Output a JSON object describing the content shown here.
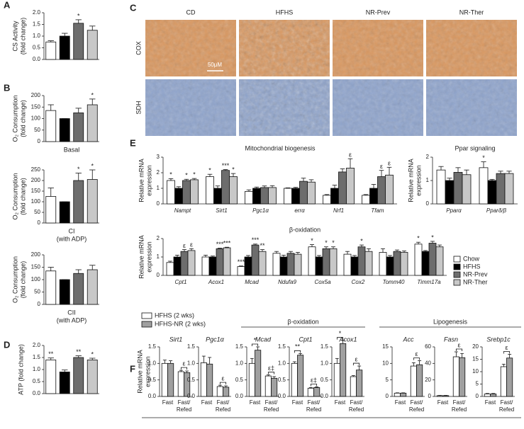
{
  "chart_data": [
    {
      "type": "bar",
      "panel": "A",
      "ylabel": [
        "CS Activity",
        "(fold change)"
      ],
      "values": [
        0.75,
        1.0,
        1.55,
        1.25
      ],
      "errors": [
        0.05,
        0.12,
        0.15,
        0.18
      ],
      "marks": [
        null,
        null,
        "*",
        null
      ],
      "colors": [
        "#ffffff",
        "#000000",
        "#6d6d6d",
        "#c8c8c8"
      ],
      "ylim": [
        0,
        2
      ],
      "yticks": [
        {
          "value": 0,
          "label": "0.0"
        },
        0.5,
        {
          "value": 1,
          "label": "1.0"
        },
        1.5,
        {
          "value": 2,
          "label": "2.0"
        }
      ]
    },
    {
      "type": "bar",
      "panel": "B",
      "ylabel": [
        "O₂ Consumption",
        "(fold change)"
      ],
      "xlabel": [
        "Basal"
      ],
      "values": [
        135,
        100,
        125,
        160
      ],
      "errors": [
        25,
        0,
        20,
        25
      ],
      "marks": [
        null,
        null,
        null,
        "*"
      ],
      "colors": [
        "#ffffff",
        "#000000",
        "#6d6d6d",
        "#c8c8c8"
      ],
      "ylim": [
        0,
        200
      ],
      "yticks": [
        0,
        50,
        100,
        150,
        200
      ]
    },
    {
      "type": "bar",
      "ylabel": [
        "O₂ Consumption",
        "(fold change)"
      ],
      "xlabel": [
        "CI",
        "(with ADP)"
      ],
      "values": [
        125,
        100,
        200,
        205
      ],
      "errors": [
        40,
        0,
        35,
        45
      ],
      "marks": [
        null,
        null,
        "*",
        "*"
      ],
      "colors": [
        "#ffffff",
        "#000000",
        "#6d6d6d",
        "#c8c8c8"
      ],
      "ylim": [
        0,
        250
      ],
      "yticks": [
        0,
        50,
        100,
        150,
        200,
        250
      ]
    },
    {
      "type": "bar",
      "ylabel": [
        "O₂ Consumption",
        "(fold change)"
      ],
      "xlabel": [
        "CII",
        "(with ADP)"
      ],
      "values": [
        135,
        100,
        125,
        140
      ],
      "errors": [
        15,
        0,
        15,
        18
      ],
      "marks": [
        null,
        null,
        null,
        null
      ],
      "colors": [
        "#ffffff",
        "#000000",
        "#6d6d6d",
        "#c8c8c8"
      ],
      "ylim": [
        0,
        200
      ],
      "yticks": [
        0,
        50,
        100,
        150,
        200
      ]
    },
    {
      "type": "bar",
      "panel": "D",
      "ylabel": [
        "ATP (fold change)"
      ],
      "values": [
        1.4,
        0.9,
        1.5,
        1.4
      ],
      "errors": [
        0.08,
        0.08,
        0.07,
        0.07
      ],
      "marks": [
        "**",
        null,
        "**",
        "*"
      ],
      "colors": [
        "#ffffff",
        "#000000",
        "#6d6d6d",
        "#c8c8c8"
      ],
      "ylim": [
        0,
        2
      ],
      "yticks": [
        {
          "value": 0,
          "label": "0.0"
        },
        0.5,
        {
          "value": 1,
          "label": "1.0"
        },
        1.5,
        {
          "value": 2,
          "label": "2.0"
        }
      ]
    },
    {
      "type": "grouped-bar",
      "panel": "E",
      "ylabel": [
        "Relative mRNA",
        "expression"
      ],
      "series": [
        {
          "name": "Chow",
          "color": "#ffffff"
        },
        {
          "name": "HFHS",
          "color": "#000000"
        },
        {
          "name": "NR-Prev",
          "color": "#6d6d6d"
        },
        {
          "name": "NR-Ther",
          "color": "#c8c8c8"
        }
      ],
      "subcharts": [
        {
          "title": "Mitochondrial biogenesis",
          "categories": [
            "Nampt",
            "Sirt1",
            "Pgc1α",
            "errα",
            "Nrf1",
            "Tfam"
          ],
          "values": [
            [
              1.5,
              1.75,
              0.8,
              1.0,
              0.55,
              0.55
            ],
            [
              1.0,
              1.0,
              1.0,
              1.0,
              1.0,
              1.0
            ],
            [
              1.5,
              2.15,
              1.05,
              1.45,
              2.05,
              1.75
            ],
            [
              1.55,
              1.75,
              1.05,
              1.4,
              2.3,
              1.85
            ]
          ],
          "errors": [
            [
              0.12,
              0.15,
              0.1,
              0.03,
              0.05,
              0.05
            ],
            [
              0.1,
              0.15,
              0.08,
              0.06,
              0.2,
              0.25
            ],
            [
              0.08,
              0.05,
              0.1,
              0.2,
              0.2,
              0.4
            ],
            [
              0.08,
              0.2,
              0.12,
              0.15,
              0.6,
              0.5
            ]
          ],
          "marks": [
            [
              "*",
              "*",
              null,
              null,
              null,
              null
            ],
            [
              null,
              null,
              null,
              null,
              null,
              null
            ],
            [
              "*",
              "***",
              null,
              null,
              null,
              "ε"
            ],
            [
              "*",
              "*",
              null,
              null,
              "ε",
              "ε"
            ]
          ],
          "ylim": [
            0,
            3
          ],
          "yticks": [
            0,
            1,
            2,
            3
          ]
        },
        {
          "title": "Ppar signaling",
          "categories": [
            "Pparα",
            "Pparδ/β"
          ],
          "values": [
            [
              1.45,
              1.55
            ],
            [
              1.0,
              1.0
            ],
            [
              1.35,
              1.3
            ],
            [
              1.25,
              1.3
            ]
          ],
          "errors": [
            [
              0.15,
              0.25
            ],
            [
              0.1,
              0.05
            ],
            [
              0.2,
              0.1
            ],
            [
              0.2,
              0.1
            ]
          ],
          "marks": [
            [
              null,
              "*"
            ],
            [
              null,
              null
            ],
            [
              null,
              null
            ],
            [
              null,
              null
            ]
          ],
          "ylim": [
            0,
            2
          ],
          "yticks": [
            0,
            1,
            2
          ]
        },
        {
          "title": "β-oxidation",
          "categories": [
            "Cpt1",
            "Acox1",
            "Mcad",
            "Ndufa9",
            "Cox5a",
            "Cox2",
            "Tomm40",
            "Timm17a"
          ],
          "values": [
            [
              0.7,
              1.0,
              0.48,
              1.2,
              1.55,
              1.15,
              1.25,
              1.7
            ],
            [
              1.0,
              1.0,
              1.0,
              1.0,
              1.0,
              1.0,
              1.0,
              1.3
            ],
            [
              1.3,
              1.45,
              1.65,
              1.2,
              1.45,
              1.55,
              1.3,
              1.75
            ],
            [
              1.35,
              1.5,
              1.3,
              1.15,
              1.45,
              1.3,
              1.25,
              1.55
            ]
          ],
          "errors": [
            [
              0.07,
              0.1,
              0.03,
              0.1,
              0.12,
              0.15,
              0.2,
              0.1
            ],
            [
              0.1,
              0.05,
              0.08,
              0.1,
              0.08,
              0.08,
              0.08,
              0.05
            ],
            [
              0.1,
              0.03,
              0.05,
              0.1,
              0.1,
              0.1,
              0.08,
              0.1
            ],
            [
              0.1,
              0.03,
              0.1,
              0.1,
              0.1,
              0.15,
              0.08,
              0.1
            ]
          ],
          "marks": [
            [
              null,
              null,
              "***",
              null,
              "*",
              null,
              null,
              "*"
            ],
            [
              null,
              null,
              null,
              null,
              null,
              null,
              null,
              null
            ],
            [
              "ε",
              "***",
              "***",
              null,
              "*",
              "*",
              null,
              "*"
            ],
            [
              "ε",
              "***",
              "**",
              null,
              "*",
              null,
              null,
              null
            ]
          ],
          "ylim": [
            0,
            2
          ],
          "yticks": [
            0,
            1,
            2
          ]
        }
      ]
    },
    {
      "type": "paired-bar",
      "panel": "F",
      "ylabel": [
        "Relative mRNA",
        "expression"
      ],
      "series": [
        {
          "name": "HFHS (2 wks)",
          "color": "#ffffff"
        },
        {
          "name": "HFHS-NR (2 wks)",
          "color": "#a0a0a0"
        }
      ],
      "categories": [
        [
          "Fast"
        ],
        [
          "Fast/",
          "Refed"
        ]
      ],
      "groups": [
        "β-oxidation",
        "Lipogenesis"
      ],
      "genes": [
        {
          "name": "Sirt1",
          "values": [
            [
              1.0,
              0.75
            ],
            [
              1.0,
              0.72
            ]
          ],
          "errors": [
            [
              0.1,
              0.04
            ],
            [
              0.08,
              0.05
            ]
          ],
          "pair_marks": [
            null,
            "ε"
          ],
          "ylim": [
            0,
            1.5
          ],
          "yticks": [
            {
              "value": 0,
              "label": "0.0"
            },
            0.5,
            {
              "value": 1,
              "label": "1.0"
            },
            1.5
          ]
        },
        {
          "name": "Pgc1α",
          "values": [
            [
              1.02,
              0.3
            ],
            [
              0.98,
              0.28
            ]
          ],
          "errors": [
            [
              0.2,
              0.04
            ],
            [
              0.2,
              0.04
            ]
          ],
          "pair_marks": [
            null,
            "ε"
          ],
          "ylim": [
            0,
            1.5
          ],
          "yticks": [
            {
              "value": 0,
              "label": "0.0"
            },
            0.5,
            {
              "value": 1,
              "label": "1.0"
            },
            1.5
          ]
        },
        {
          "name": "Mcad",
          "values": [
            [
              1.0,
              0.62
            ],
            [
              1.4,
              0.55
            ]
          ],
          "errors": [
            [
              0.15,
              0.03
            ],
            [
              0.1,
              0.05
            ]
          ],
          "pair_marks": [
            "*",
            "ε‡"
          ],
          "ylim": [
            0,
            1.5
          ],
          "yticks": [
            {
              "value": 0,
              "label": "0.0"
            },
            0.5,
            {
              "value": 1,
              "label": "1.0"
            },
            1.5
          ]
        },
        {
          "name": "Cpt1",
          "values": [
            [
              1.0,
              0.25
            ],
            [
              1.25,
              0.27
            ]
          ],
          "errors": [
            [
              0.05,
              0.02
            ],
            [
              0.05,
              0.02
            ]
          ],
          "pair_marks": [
            "**",
            "ε‡"
          ],
          "ylim": [
            0,
            1.5
          ],
          "yticks": [
            {
              "value": 0,
              "label": "0.0"
            },
            0.5,
            {
              "value": 1,
              "label": "1.0"
            },
            1.5
          ]
        },
        {
          "name": "Acox1",
          "values": [
            [
              1.0,
              0.6
            ],
            [
              1.6,
              0.8
            ]
          ],
          "errors": [
            [
              0.15,
              0.03
            ],
            [
              0.1,
              0.12
            ]
          ],
          "pair_marks": [
            "*",
            "ε"
          ],
          "ylim": [
            0,
            1.5
          ],
          "yticks": [
            {
              "value": 0,
              "label": "0.0"
            },
            0.5,
            {
              "value": 1,
              "label": "1.0"
            },
            1.5
          ]
        },
        {
          "name": "Acc",
          "values": [
            [
              1.0,
              9.2
            ],
            [
              1.0,
              9.6
            ]
          ],
          "errors": [
            [
              0.1,
              1.0
            ],
            [
              0.1,
              1.2
            ]
          ],
          "pair_marks": [
            null,
            "ε"
          ],
          "ylim": [
            0,
            15
          ],
          "yticks": [
            0,
            5,
            10,
            15
          ]
        },
        {
          "name": "Fasn",
          "values": [
            [
              1,
              48
            ],
            [
              1,
              47
            ]
          ],
          "errors": [
            [
              0.3,
              6
            ],
            [
              0.3,
              5
            ]
          ],
          "pair_marks": [
            null,
            "ε"
          ],
          "ylim": [
            0,
            60
          ],
          "yticks": [
            0,
            20,
            40,
            60
          ]
        },
        {
          "name": "Srebp1c",
          "values": [
            [
              1,
              12
            ],
            [
              1,
              15.5
            ]
          ],
          "errors": [
            [
              0.2,
              1
            ],
            [
              0.2,
              1.5
            ]
          ],
          "pair_marks": [
            null,
            "ε"
          ],
          "ylim": [
            0,
            20
          ],
          "yticks": [
            0,
            5,
            10,
            15,
            20
          ]
        }
      ]
    }
  ],
  "images": {
    "panel": "C",
    "columns": [
      "CD",
      "HFHS",
      "NR-Prev",
      "NR-Ther"
    ],
    "rows": [
      "COX",
      "SDH"
    ],
    "scale_bar": "50μM"
  }
}
